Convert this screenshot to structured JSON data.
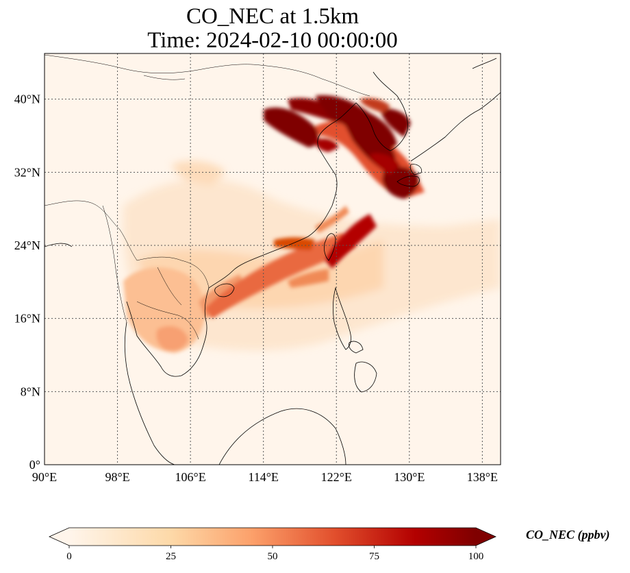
{
  "title_line1": "CO_NEC at 1.5km",
  "title_line2": "Time: 2024-02-10 00:00:00",
  "colors": {
    "low": "#fff5eb",
    "mid": "#fdae6b",
    "high_mid": "#d94801",
    "high": "#7f0000",
    "coast": "#000000",
    "grid": "#555555"
  },
  "map": {
    "lon_range": [
      90,
      140
    ],
    "lat_range": [
      0,
      45
    ],
    "lon_ticks": [
      "90°E",
      "98°E",
      "106°E",
      "114°E",
      "122°E",
      "130°E",
      "138°E"
    ],
    "lat_ticks": [
      "0°",
      "8°N",
      "16°N",
      "24°N",
      "32°N",
      "40°N"
    ],
    "lon_tick_values": [
      90,
      98,
      106,
      114,
      122,
      130,
      138
    ],
    "lat_tick_values": [
      0,
      8,
      16,
      24,
      32,
      40
    ],
    "gridlines": "dotted"
  },
  "colorbar": {
    "label": "CO_NEC (ppbv)",
    "ticks": [
      "0",
      "25",
      "50",
      "75",
      "100"
    ],
    "tick_values": [
      0,
      25,
      50,
      75,
      100
    ],
    "range": [
      0,
      100
    ],
    "extend": "both",
    "colormap": "OrRd"
  }
}
